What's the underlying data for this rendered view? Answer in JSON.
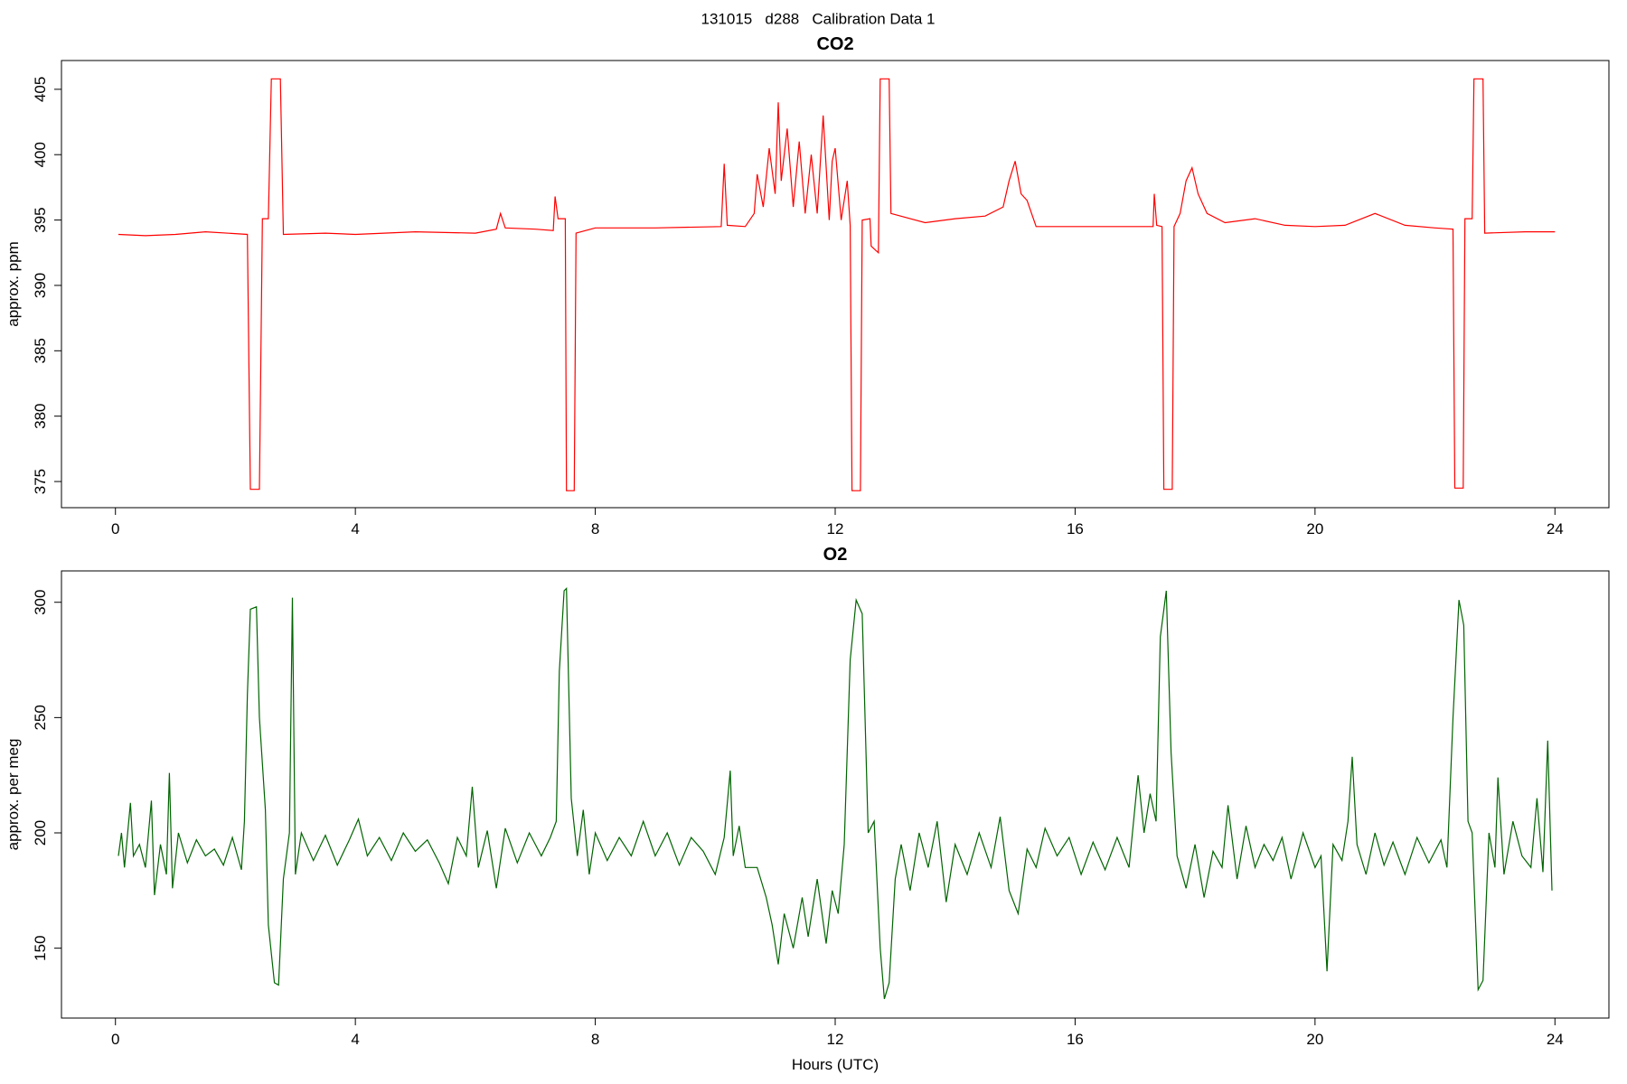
{
  "title": "131015   d288   Calibration Data 1",
  "chart_data": [
    {
      "type": "line",
      "title": "CO2",
      "y_label": "approx. ppm",
      "xlim": [
        -0.9,
        24.9
      ],
      "ylim": [
        373,
        407.2
      ],
      "xticks": [
        0,
        4,
        8,
        12,
        16,
        20,
        24
      ],
      "yticks": [
        375,
        380,
        385,
        390,
        395,
        400,
        405
      ],
      "x": [
        0.05,
        0.5,
        1.0,
        1.5,
        2.2,
        2.25,
        2.4,
        2.45,
        2.55,
        2.6,
        2.75,
        2.8,
        3.5,
        4,
        5,
        6,
        6.35,
        6.42,
        6.5,
        7.0,
        7.3,
        7.33,
        7.38,
        7.5,
        7.52,
        7.65,
        7.68,
        8,
        9,
        10.1,
        10.15,
        10.2,
        10.5,
        10.65,
        10.7,
        10.8,
        10.9,
        11.0,
        11.05,
        11.1,
        11.2,
        11.3,
        11.4,
        11.5,
        11.6,
        11.7,
        11.8,
        11.9,
        11.95,
        12.0,
        12.1,
        12.2,
        12.25,
        12.28,
        12.42,
        12.45,
        12.58,
        12.6,
        12.72,
        12.75,
        12.9,
        12.93,
        13.5,
        14,
        14.5,
        14.8,
        14.9,
        15.0,
        15.1,
        15.2,
        15.35,
        16,
        17,
        17.3,
        17.32,
        17.36,
        17.45,
        17.48,
        17.62,
        17.65,
        17.75,
        17.85,
        17.95,
        18.05,
        18.2,
        18.5,
        19,
        19.5,
        20,
        20.5,
        21,
        21.5,
        22,
        22.3,
        22.33,
        22.47,
        22.5,
        22.62,
        22.65,
        22.8,
        22.83,
        23.5,
        24
      ],
      "series": [
        {
          "color": "#ff0000",
          "values": [
            393.9,
            393.8,
            393.9,
            394.1,
            393.9,
            374.4,
            374.4,
            395.1,
            395.1,
            405.8,
            405.8,
            393.9,
            394.0,
            393.9,
            394.1,
            394.0,
            394.3,
            395.5,
            394.4,
            394.3,
            394.2,
            396.8,
            395.1,
            395.1,
            374.3,
            374.3,
            394.0,
            394.4,
            394.4,
            394.5,
            399.3,
            394.6,
            394.5,
            395.5,
            398.5,
            396,
            400.5,
            397,
            404,
            398,
            402,
            396,
            401,
            395.5,
            400,
            395.5,
            403,
            395,
            399.5,
            400.5,
            395,
            398,
            394.6,
            374.3,
            374.3,
            395,
            395.1,
            393,
            392.5,
            405.8,
            405.8,
            395.5,
            394.8,
            395.1,
            395.3,
            396,
            398,
            399.5,
            397,
            396.5,
            394.5,
            394.5,
            394.5,
            394.5,
            397,
            394.6,
            394.5,
            374.4,
            374.4,
            394.5,
            395.5,
            398,
            399,
            397,
            395.5,
            394.8,
            395.1,
            394.6,
            394.5,
            394.6,
            395.5,
            394.6,
            394.4,
            394.3,
            374.5,
            374.5,
            395.1,
            395.1,
            405.8,
            405.8,
            394.0,
            394.1,
            394.1
          ]
        }
      ]
    },
    {
      "type": "line",
      "title": "O2",
      "y_label": "approx. per meg",
      "x_label": "Hours (UTC)",
      "xlim": [
        -0.9,
        24.9
      ],
      "ylim": [
        119.7,
        313.6
      ],
      "xticks": [
        0,
        4,
        8,
        12,
        16,
        20,
        24
      ],
      "yticks": [
        150,
        200,
        250,
        300
      ],
      "x": [
        0.05,
        0.1,
        0.15,
        0.25,
        0.3,
        0.4,
        0.5,
        0.6,
        0.65,
        0.75,
        0.85,
        0.9,
        0.95,
        1.05,
        1.2,
        1.35,
        1.5,
        1.65,
        1.8,
        1.95,
        2.1,
        2.15,
        2.2,
        2.25,
        2.35,
        2.4,
        2.5,
        2.55,
        2.65,
        2.72,
        2.8,
        2.9,
        2.95,
        3.0,
        3.1,
        3.3,
        3.5,
        3.7,
        3.9,
        4.05,
        4.2,
        4.4,
        4.6,
        4.8,
        5.0,
        5.2,
        5.4,
        5.55,
        5.7,
        5.85,
        5.95,
        6.05,
        6.2,
        6.35,
        6.5,
        6.7,
        6.9,
        7.1,
        7.25,
        7.35,
        7.4,
        7.48,
        7.52,
        7.6,
        7.7,
        7.8,
        7.9,
        8.0,
        8.2,
        8.4,
        8.6,
        8.8,
        9.0,
        9.2,
        9.4,
        9.6,
        9.8,
        10.0,
        10.15,
        10.25,
        10.3,
        10.4,
        10.5,
        10.7,
        10.85,
        10.95,
        11.05,
        11.15,
        11.3,
        11.45,
        11.55,
        11.7,
        11.85,
        11.95,
        12.05,
        12.15,
        12.25,
        12.35,
        12.45,
        12.55,
        12.65,
        12.75,
        12.82,
        12.9,
        13.0,
        13.1,
        13.25,
        13.4,
        13.55,
        13.7,
        13.85,
        14.0,
        14.2,
        14.4,
        14.6,
        14.75,
        14.9,
        15.05,
        15.2,
        15.35,
        15.5,
        15.7,
        15.9,
        16.1,
        16.3,
        16.5,
        16.7,
        16.9,
        17.05,
        17.15,
        17.25,
        17.35,
        17.42,
        17.52,
        17.6,
        17.7,
        17.85,
        18.0,
        18.15,
        18.3,
        18.45,
        18.55,
        18.7,
        18.85,
        19.0,
        19.15,
        19.3,
        19.45,
        19.6,
        19.8,
        20.0,
        20.1,
        20.2,
        20.3,
        20.45,
        20.55,
        20.62,
        20.7,
        20.85,
        21.0,
        21.15,
        21.3,
        21.5,
        21.7,
        21.9,
        22.1,
        22.2,
        22.3,
        22.4,
        22.48,
        22.55,
        22.62,
        22.72,
        22.8,
        22.9,
        23.0,
        23.05,
        23.15,
        23.3,
        23.45,
        23.6,
        23.7,
        23.8,
        23.88,
        23.95
      ],
      "series": [
        {
          "color": "#006400",
          "values": [
            190,
            200,
            185,
            213,
            190,
            195,
            185,
            214,
            173,
            195,
            182,
            226,
            176,
            200,
            187,
            197,
            190,
            193,
            186,
            198,
            184,
            205,
            260,
            297,
            298,
            250,
            210,
            160,
            135,
            134,
            180,
            200,
            302,
            182,
            200,
            188,
            199,
            186,
            197,
            206,
            190,
            198,
            188,
            200,
            192,
            197,
            187,
            178,
            198,
            190,
            220,
            185,
            201,
            176,
            202,
            187,
            200,
            190,
            198,
            205,
            270,
            305,
            306,
            215,
            190,
            210,
            182,
            200,
            188,
            198,
            190,
            205,
            190,
            200,
            186,
            198,
            192,
            182,
            198,
            227,
            190,
            203,
            185,
            185,
            172,
            160,
            143,
            165,
            150,
            172,
            155,
            180,
            152,
            175,
            165,
            195,
            275,
            301,
            295,
            200,
            205,
            150,
            128,
            135,
            180,
            195,
            175,
            200,
            185,
            205,
            170,
            195,
            182,
            200,
            185,
            207,
            175,
            165,
            193,
            185,
            202,
            190,
            198,
            182,
            196,
            184,
            198,
            185,
            225,
            200,
            217,
            205,
            285,
            305,
            235,
            190,
            176,
            195,
            172,
            192,
            185,
            212,
            180,
            203,
            185,
            195,
            188,
            198,
            180,
            200,
            185,
            190,
            140,
            195,
            188,
            205,
            233,
            195,
            182,
            200,
            186,
            196,
            182,
            198,
            187,
            197,
            185,
            250,
            301,
            290,
            205,
            200,
            132,
            136,
            200,
            185,
            224,
            182,
            205,
            190,
            185,
            215,
            183,
            240,
            175
          ]
        }
      ]
    }
  ]
}
